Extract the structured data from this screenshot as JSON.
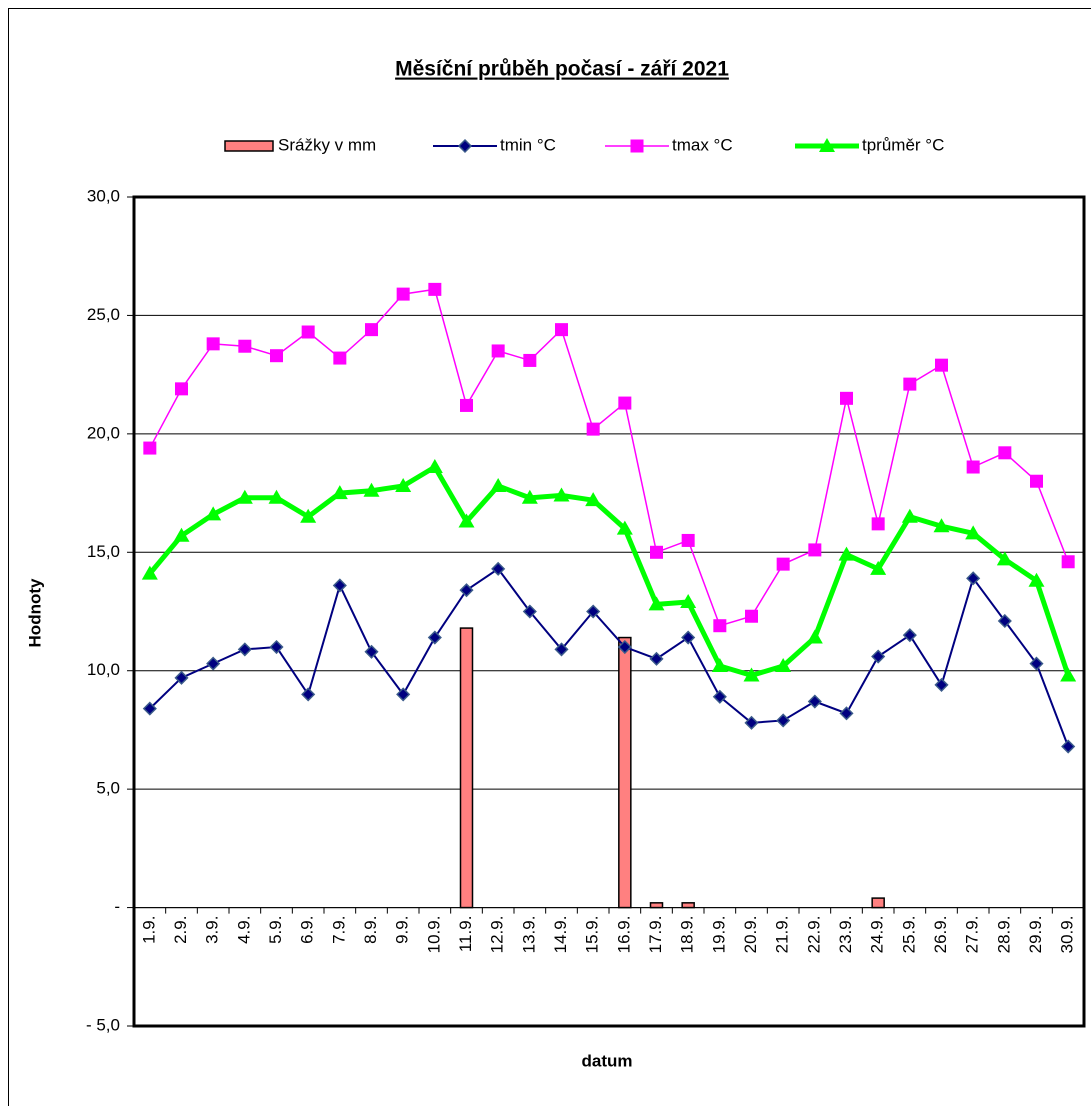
{
  "chart_data": {
    "type": "combo",
    "title": "Měsíční průběh počasí - září 2021",
    "y_label": "Hodnoty",
    "x_label": "datum",
    "categories": [
      "1.9.",
      "2.9.",
      "3.9.",
      "4.9.",
      "5.9.",
      "6.9.",
      "7.9.",
      "8.9.",
      "9.9.",
      "10.9.",
      "11.9.",
      "12.9.",
      "13.9.",
      "14.9.",
      "15.9.",
      "16.9.",
      "17.9.",
      "18.9.",
      "19.9.",
      "20.9.",
      "21.9.",
      "22.9.",
      "23.9.",
      "24.9.",
      "25.9.",
      "26.9.",
      "27.9.",
      "28.9.",
      "29.9.",
      "30.9."
    ],
    "ylim": [
      -5,
      30
    ],
    "yticks": [
      {
        "value": -5,
        "label": "- 5,0"
      },
      {
        "value": 0,
        "label": "-"
      },
      {
        "value": 5,
        "label": "5,0"
      },
      {
        "value": 10,
        "label": "10,0"
      },
      {
        "value": 15,
        "label": "15,0"
      },
      {
        "value": 20,
        "label": "20,0"
      },
      {
        "value": 25,
        "label": "25,0"
      },
      {
        "value": 30,
        "label": "30,0"
      }
    ],
    "grid": true,
    "series": [
      {
        "name": "Srážky v mm",
        "type": "bar",
        "color": "#ff8080",
        "values": [
          0,
          0,
          0,
          0,
          0,
          0,
          0,
          0,
          0,
          0,
          11.8,
          0,
          0,
          0,
          0,
          11.4,
          0.2,
          0.2,
          0,
          0,
          0,
          0,
          0,
          0.4,
          0,
          0,
          0,
          0,
          0,
          0
        ]
      },
      {
        "name": "tmin °C",
        "type": "line",
        "marker": "diamond",
        "color": "#000080",
        "values": [
          8.4,
          9.7,
          10.3,
          10.9,
          11.0,
          9.0,
          13.6,
          10.8,
          9.0,
          11.4,
          13.4,
          14.3,
          12.5,
          10.9,
          12.5,
          11.0,
          10.5,
          11.4,
          8.9,
          7.8,
          7.9,
          8.7,
          8.2,
          10.6,
          11.5,
          9.4,
          13.9,
          12.1,
          10.3,
          6.8
        ]
      },
      {
        "name": "tmax °C",
        "type": "line",
        "marker": "square",
        "color": "#ff00ff",
        "values": [
          19.4,
          21.9,
          23.8,
          23.7,
          23.3,
          24.3,
          23.2,
          24.4,
          25.9,
          26.1,
          21.2,
          23.5,
          23.1,
          24.4,
          20.2,
          21.3,
          15.0,
          15.5,
          11.9,
          12.3,
          14.5,
          15.1,
          21.5,
          16.2,
          22.1,
          22.9,
          18.6,
          19.2,
          18.0,
          14.6
        ]
      },
      {
        "name": "tprůměr °C",
        "type": "line",
        "marker": "triangle",
        "color": "#00ff00",
        "values": [
          14.1,
          15.7,
          16.6,
          17.3,
          17.3,
          16.5,
          17.5,
          17.6,
          17.8,
          18.6,
          16.3,
          17.8,
          17.3,
          17.4,
          17.2,
          16.0,
          12.8,
          12.9,
          10.2,
          9.8,
          10.2,
          11.4,
          14.9,
          14.3,
          16.5,
          16.1,
          15.8,
          14.7,
          13.8,
          9.8
        ]
      }
    ]
  }
}
